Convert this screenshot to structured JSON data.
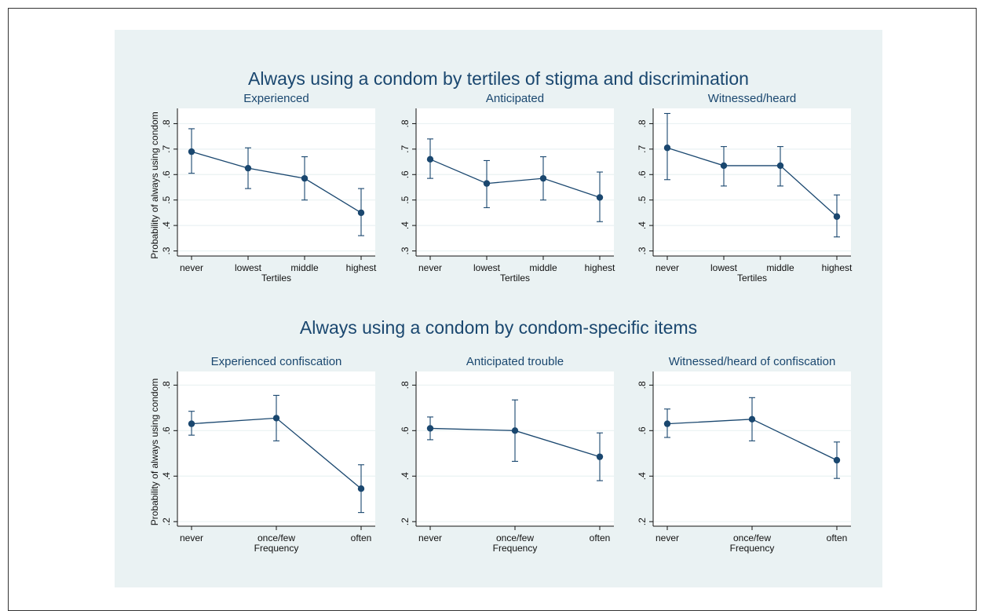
{
  "colors": {
    "figure_bg": "#eaf2f3",
    "plot_bg": "#ffffff",
    "series": "#1a476f",
    "grid": "#eaf2f3",
    "title": "#1a476f"
  },
  "chart_data": [
    {
      "type": "line",
      "title": "Experienced",
      "group_title": "Always using a condom by tertiles of stigma and discrimination",
      "xlabel": "Tertiles",
      "ylabel": "Probability of always using condom",
      "categories": [
        "never",
        "lowest",
        "middle",
        "highest"
      ],
      "values": [
        0.69,
        0.625,
        0.585,
        0.45
      ],
      "ci_low": [
        0.605,
        0.545,
        0.5,
        0.36
      ],
      "ci_high": [
        0.78,
        0.705,
        0.67,
        0.545
      ],
      "ylim": [
        0.28,
        0.86
      ],
      "yticks": [
        ".3",
        ".4",
        ".5",
        ".6",
        ".7",
        ".8"
      ],
      "yticks_v": [
        0.3,
        0.4,
        0.5,
        0.6,
        0.7,
        0.8
      ],
      "grid": true
    },
    {
      "type": "line",
      "title": "Anticipated",
      "xlabel": "Tertiles",
      "ylabel": "",
      "categories": [
        "never",
        "lowest",
        "middle",
        "highest"
      ],
      "values": [
        0.66,
        0.565,
        0.585,
        0.51
      ],
      "ci_low": [
        0.585,
        0.47,
        0.5,
        0.415
      ],
      "ci_high": [
        0.74,
        0.655,
        0.67,
        0.61
      ],
      "ylim": [
        0.28,
        0.86
      ],
      "yticks": [
        ".3",
        ".4",
        ".5",
        ".6",
        ".7",
        ".8"
      ],
      "yticks_v": [
        0.3,
        0.4,
        0.5,
        0.6,
        0.7,
        0.8
      ],
      "grid": true
    },
    {
      "type": "line",
      "title": "Witnessed/heard",
      "xlabel": "Tertiles",
      "ylabel": "",
      "categories": [
        "never",
        "lowest",
        "middle",
        "highest"
      ],
      "values": [
        0.705,
        0.635,
        0.635,
        0.435
      ],
      "ci_low": [
        0.58,
        0.555,
        0.555,
        0.355
      ],
      "ci_high": [
        0.84,
        0.71,
        0.71,
        0.52
      ],
      "ylim": [
        0.28,
        0.86
      ],
      "yticks": [
        ".3",
        ".4",
        ".5",
        ".6",
        ".7",
        ".8"
      ],
      "yticks_v": [
        0.3,
        0.4,
        0.5,
        0.6,
        0.7,
        0.8
      ],
      "grid": true
    },
    {
      "type": "line",
      "title": "Experienced confiscation",
      "group_title": "Always using a condom by condom-specific items",
      "xlabel": "Frequency",
      "ylabel": "Probability of always using condom",
      "categories": [
        "never",
        "once/few",
        "often"
      ],
      "values": [
        0.63,
        0.655,
        0.345
      ],
      "ci_low": [
        0.58,
        0.555,
        0.24
      ],
      "ci_high": [
        0.685,
        0.755,
        0.45
      ],
      "ylim": [
        0.18,
        0.86
      ],
      "yticks": [
        ".2",
        ".4",
        ".6",
        ".8"
      ],
      "yticks_v": [
        0.2,
        0.4,
        0.6,
        0.8
      ],
      "grid": true
    },
    {
      "type": "line",
      "title": "Anticipated trouble",
      "xlabel": "Frequency",
      "ylabel": "",
      "categories": [
        "never",
        "once/few",
        "often"
      ],
      "values": [
        0.61,
        0.6,
        0.485
      ],
      "ci_low": [
        0.56,
        0.465,
        0.38
      ],
      "ci_high": [
        0.66,
        0.735,
        0.59
      ],
      "ylim": [
        0.18,
        0.86
      ],
      "yticks": [
        ".2",
        ".4",
        ".6",
        ".8"
      ],
      "yticks_v": [
        0.2,
        0.4,
        0.6,
        0.8
      ],
      "grid": true
    },
    {
      "type": "line",
      "title": "Witnessed/heard of confiscation",
      "xlabel": "Frequency",
      "ylabel": "",
      "categories": [
        "never",
        "once/few",
        "often"
      ],
      "values": [
        0.63,
        0.65,
        0.47
      ],
      "ci_low": [
        0.57,
        0.555,
        0.39
      ],
      "ci_high": [
        0.695,
        0.745,
        0.55
      ],
      "ylim": [
        0.18,
        0.86
      ],
      "yticks": [
        ".2",
        ".4",
        ".6",
        ".8"
      ],
      "yticks_v": [
        0.2,
        0.4,
        0.6,
        0.8
      ],
      "grid": true
    }
  ]
}
